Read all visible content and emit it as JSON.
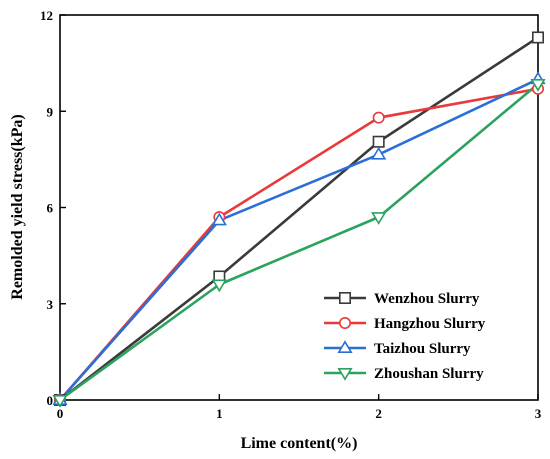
{
  "chart_data": {
    "type": "line",
    "xlabel": "Lime content(%)",
    "ylabel": "Remolded yield stress(kPa)",
    "x": [
      0,
      1,
      2,
      3
    ],
    "xlim": [
      0,
      3
    ],
    "ylim": [
      0,
      12
    ],
    "xticks": [
      "0",
      "1",
      "2",
      "3"
    ],
    "yticks": [
      "0",
      "3",
      "6",
      "9",
      "12"
    ],
    "grid": false,
    "legend_position": "bottom-right",
    "series": [
      {
        "name": "Wenzhou Slurry",
        "marker": "square",
        "color": "#3a3a3a",
        "values": [
          0,
          3.85,
          8.05,
          11.3
        ]
      },
      {
        "name": "Hangzhou Slurry",
        "marker": "circle",
        "color": "#e8393b",
        "values": [
          0,
          5.7,
          8.8,
          9.7
        ]
      },
      {
        "name": "Taizhou Slurry",
        "marker": "triangle-up",
        "color": "#2a6fd6",
        "values": [
          0,
          5.6,
          7.65,
          10.0
        ]
      },
      {
        "name": "Zhoushan Slurry",
        "marker": "triangle-down",
        "color": "#2ca25f",
        "values": [
          0,
          3.6,
          5.7,
          9.85
        ]
      }
    ]
  }
}
